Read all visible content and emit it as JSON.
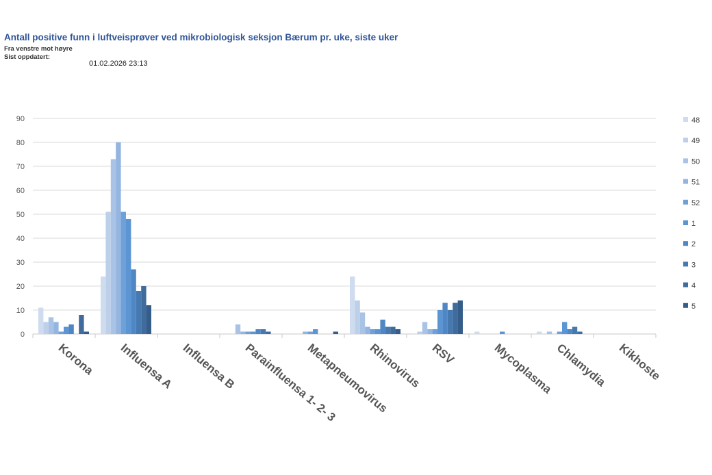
{
  "header": {
    "title": "Antall positive funn i luftveisprøver ved mikrobiologisk seksjon Bærum pr. uke, siste uker",
    "subtitle": "Fra venstre mot høyre",
    "updated_label": "Sist oppdatert:",
    "updated_value": "01.02.2026 23:13"
  },
  "chart_data": {
    "type": "bar",
    "ylim": [
      0,
      90
    ],
    "yticks": [
      0,
      10,
      20,
      30,
      40,
      50,
      60,
      70,
      80,
      90
    ],
    "grid": true,
    "legend_placement": "right",
    "categories": [
      "Korona",
      "Influensa A",
      "Influensa B",
      "Parainfluensa 1- 2- 3",
      "Metapneumovirus",
      "Rhinovirus",
      "RSV",
      "Mycoplasma",
      "Chlamydia",
      "Kikhoste"
    ],
    "series": [
      {
        "name": "48",
        "color": "#cfdcef",
        "values": [
          11,
          24,
          0,
          0,
          0,
          24,
          0,
          1,
          1,
          0
        ]
      },
      {
        "name": "49",
        "color": "#bdd0ea",
        "values": [
          5,
          51,
          0,
          0,
          0,
          14,
          1,
          0,
          0,
          0
        ]
      },
      {
        "name": "50",
        "color": "#a9c3e6",
        "values": [
          7,
          73,
          0,
          4,
          0,
          9,
          5,
          0,
          1,
          0
        ]
      },
      {
        "name": "51",
        "color": "#93b5e0",
        "values": [
          5,
          80,
          0,
          1,
          1,
          3,
          2,
          0,
          0,
          0
        ]
      },
      {
        "name": "52",
        "color": "#6fa0d8",
        "values": [
          1,
          51,
          0,
          1,
          1,
          2,
          2,
          0,
          1,
          0
        ]
      },
      {
        "name": "1",
        "color": "#5b95d3",
        "values": [
          3,
          48,
          0,
          1,
          2,
          2,
          10,
          1,
          5,
          0
        ]
      },
      {
        "name": "2",
        "color": "#4f87c4",
        "values": [
          4,
          27,
          0,
          2,
          0,
          6,
          13,
          0,
          2,
          0
        ]
      },
      {
        "name": "3",
        "color": "#4679b0",
        "values": [
          0,
          18,
          0,
          2,
          0,
          3,
          10,
          0,
          3,
          0
        ]
      },
      {
        "name": "4",
        "color": "#3f6c9d",
        "values": [
          8,
          20,
          0,
          1,
          0,
          3,
          13,
          0,
          1,
          0
        ]
      },
      {
        "name": "5",
        "color": "#355d8a",
        "values": [
          1,
          12,
          0,
          0,
          1,
          2,
          14,
          0,
          0,
          0
        ]
      }
    ]
  }
}
